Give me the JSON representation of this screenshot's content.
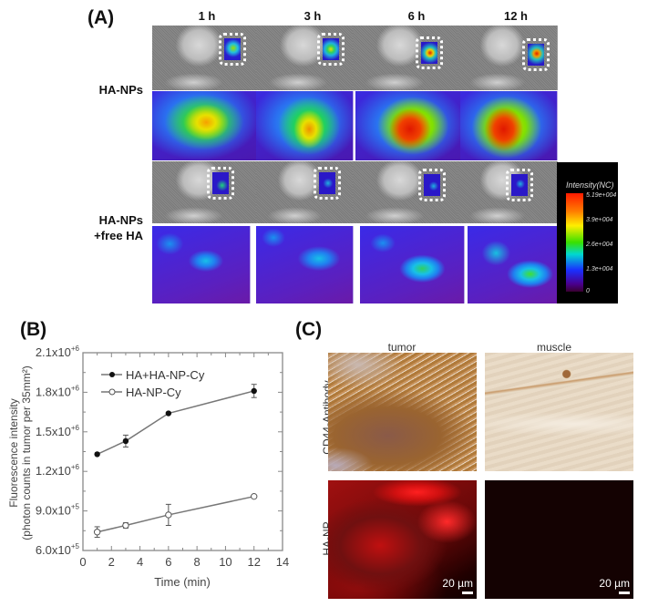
{
  "panel_a": {
    "label": "(A)",
    "time_headers": [
      "1 h",
      "3 h",
      "6 h",
      "12 h"
    ],
    "row_labels": {
      "ha_nps": "HA-NPs",
      "ha_nps_free_line1": "HA-NPs",
      "ha_nps_free_line2": "+free HA"
    },
    "colorbar": {
      "title": "Intensity(NC)",
      "ticks": [
        "5.19e+004",
        "3.9e+004",
        "2.6e+004",
        "1.3e+004",
        "0"
      ]
    }
  },
  "panel_b": {
    "label": "(B)"
  },
  "panel_c": {
    "label": "(C)",
    "column_labels": [
      "tumor",
      "muscle"
    ],
    "row_labels": [
      "CD44-Antibody",
      "HA-NP"
    ],
    "scale_bar": "20 µm"
  },
  "chart_data": {
    "type": "line",
    "title": "",
    "xlabel": "Time (min)",
    "ylabel": "Fluorescence intensity\n(photon counts in tumor per 35mm²)",
    "ylabel_line1": "Fluorescence intensity",
    "ylabel_line2": "(photon counts in tumor per 35mm²)",
    "xlim": [
      0,
      14
    ],
    "ylim": [
      600000,
      2100000
    ],
    "x_ticks": [
      "0",
      "2",
      "4",
      "6",
      "8",
      "10",
      "12",
      "14"
    ],
    "y_ticks": [
      "6.0x10+5",
      "9.0x10+5",
      "1.2x10+6",
      "1.5x10+6",
      "1.8x10+6",
      "2.1x10+6"
    ],
    "y_tick_mantissas": [
      "6.0x10",
      "9.0x10",
      "1.2x10",
      "1.5x10",
      "1.8x10",
      "2.1x10"
    ],
    "y_tick_exponents": [
      "+5",
      "+5",
      "+6",
      "+6",
      "+6",
      "+6"
    ],
    "grid": false,
    "legend_position": "upper left",
    "x": [
      1,
      3,
      6,
      12
    ],
    "series": [
      {
        "name": "HA+HA-NP-Cy",
        "marker": "filled-circle",
        "values": [
          1330000,
          1430000,
          1640000,
          1810000
        ],
        "errors": [
          10000,
          45000,
          10000,
          50000
        ]
      },
      {
        "name": "HA-NP-Cy",
        "marker": "open-circle",
        "values": [
          740000,
          790000,
          870000,
          1010000
        ],
        "errors": [
          40000,
          20000,
          80000,
          10000
        ]
      }
    ]
  }
}
